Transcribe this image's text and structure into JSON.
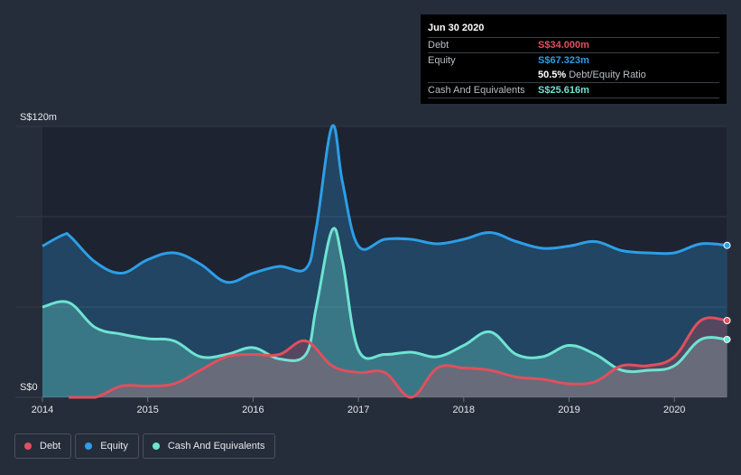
{
  "tooltip": {
    "date": "Jun 30 2020",
    "debt_label": "Debt",
    "debt_value": "S$34.000m",
    "equity_label": "Equity",
    "equity_value": "S$67.323m",
    "ratio_value": "50.5%",
    "ratio_label": "Debt/Equity Ratio",
    "cash_label": "Cash And Equivalents",
    "cash_value": "S$25.616m"
  },
  "colors": {
    "debt": "#e0505d",
    "equity": "#2d9ee7",
    "cash": "#6fe3d2",
    "background": "#262d3a",
    "plot_area": "#1b212c"
  },
  "legend": [
    {
      "label": "Debt",
      "color": "#e0505d"
    },
    {
      "label": "Equity",
      "color": "#2d9ee7"
    },
    {
      "label": "Cash And Equivalents",
      "color": "#6fe3d2"
    }
  ],
  "chart_data": {
    "type": "area",
    "title": "",
    "ylabel": "",
    "xlabel": "",
    "ylim": [
      0,
      120
    ],
    "xlim": [
      2014.0,
      2020.5
    ],
    "y_tick_labels": [
      {
        "value": 120,
        "label": "S$120m"
      },
      {
        "value": 0,
        "label": "S$0"
      }
    ],
    "x_ticks": [
      2014,
      2015,
      2016,
      2017,
      2018,
      2019,
      2020
    ],
    "x_tick_labels": [
      "2014",
      "2015",
      "2016",
      "2017",
      "2018",
      "2019",
      "2020"
    ],
    "series": [
      {
        "name": "Equity",
        "x": [
          2014.0,
          2014.2,
          2014.27,
          2014.5,
          2014.75,
          2015.0,
          2015.25,
          2015.5,
          2015.75,
          2016.0,
          2016.25,
          2016.5,
          2016.6,
          2016.75,
          2016.85,
          2017.0,
          2017.25,
          2017.5,
          2017.75,
          2018.0,
          2018.25,
          2018.5,
          2018.75,
          2019.0,
          2019.25,
          2019.5,
          2019.75,
          2020.0,
          2020.25,
          2020.5
        ],
        "values": [
          67,
          72,
          71,
          60,
          55,
          61,
          64,
          59,
          51,
          55,
          58,
          57,
          75,
          120,
          95,
          67,
          70,
          70,
          68,
          70,
          73,
          69,
          66,
          67,
          69,
          65,
          64,
          64,
          68,
          67.323
        ]
      },
      {
        "name": "Cash And Equivalents",
        "x": [
          2014.0,
          2014.25,
          2014.5,
          2014.75,
          2015.0,
          2015.25,
          2015.5,
          2015.75,
          2016.0,
          2016.25,
          2016.5,
          2016.6,
          2016.75,
          2016.85,
          2017.0,
          2017.25,
          2017.5,
          2017.75,
          2018.0,
          2018.25,
          2018.5,
          2018.75,
          2019.0,
          2019.25,
          2019.5,
          2019.75,
          2020.0,
          2020.25,
          2020.5
        ],
        "values": [
          40,
          42,
          31,
          28,
          26,
          25,
          18,
          19,
          22,
          17,
          19,
          40,
          74,
          60,
          21,
          19,
          20,
          18,
          23,
          29,
          19,
          18,
          23,
          19,
          12,
          12,
          14,
          25.616,
          25.616
        ]
      },
      {
        "name": "Debt",
        "x": [
          2014.25,
          2014.5,
          2014.75,
          2015.0,
          2015.25,
          2015.5,
          2015.75,
          2016.0,
          2016.25,
          2016.5,
          2016.75,
          2017.0,
          2017.25,
          2017.5,
          2017.75,
          2018.0,
          2018.25,
          2018.5,
          2018.75,
          2019.0,
          2019.25,
          2019.5,
          2019.75,
          2020.0,
          2020.25,
          2020.5
        ],
        "values": [
          0,
          0,
          5,
          5,
          6,
          12,
          18,
          19,
          19,
          25,
          14,
          11,
          11,
          0,
          13,
          13,
          12,
          9,
          8,
          6,
          7,
          14,
          14,
          18,
          34,
          34
        ]
      }
    ]
  }
}
